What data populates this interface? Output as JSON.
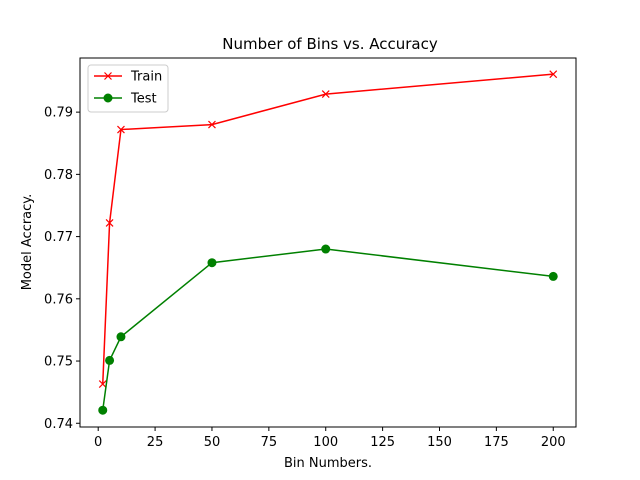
{
  "chart_data": {
    "type": "line",
    "title": "Number of Bins vs. Accuracy",
    "xlabel": "Bin Numbers.",
    "ylabel": "Model Accracy.",
    "xlim": [
      -8,
      210
    ],
    "ylim": [
      0.7394,
      0.7987
    ],
    "x_ticks": [
      0,
      25,
      50,
      75,
      100,
      125,
      150,
      175,
      200
    ],
    "y_ticks": [
      0.74,
      0.75,
      0.76,
      0.77,
      0.78,
      0.79
    ],
    "grid": false,
    "legend_position": "upper-left",
    "x": [
      2,
      5,
      10,
      50,
      100,
      200
    ],
    "series": [
      {
        "name": "Train",
        "color": "#ff0000",
        "marker": "x",
        "values": [
          0.7463,
          0.7722,
          0.7872,
          0.788,
          0.7929,
          0.7961
        ]
      },
      {
        "name": "Test",
        "color": "#008000",
        "marker": "o",
        "values": [
          0.7421,
          0.7501,
          0.7539,
          0.7658,
          0.768,
          0.7636
        ]
      }
    ]
  }
}
